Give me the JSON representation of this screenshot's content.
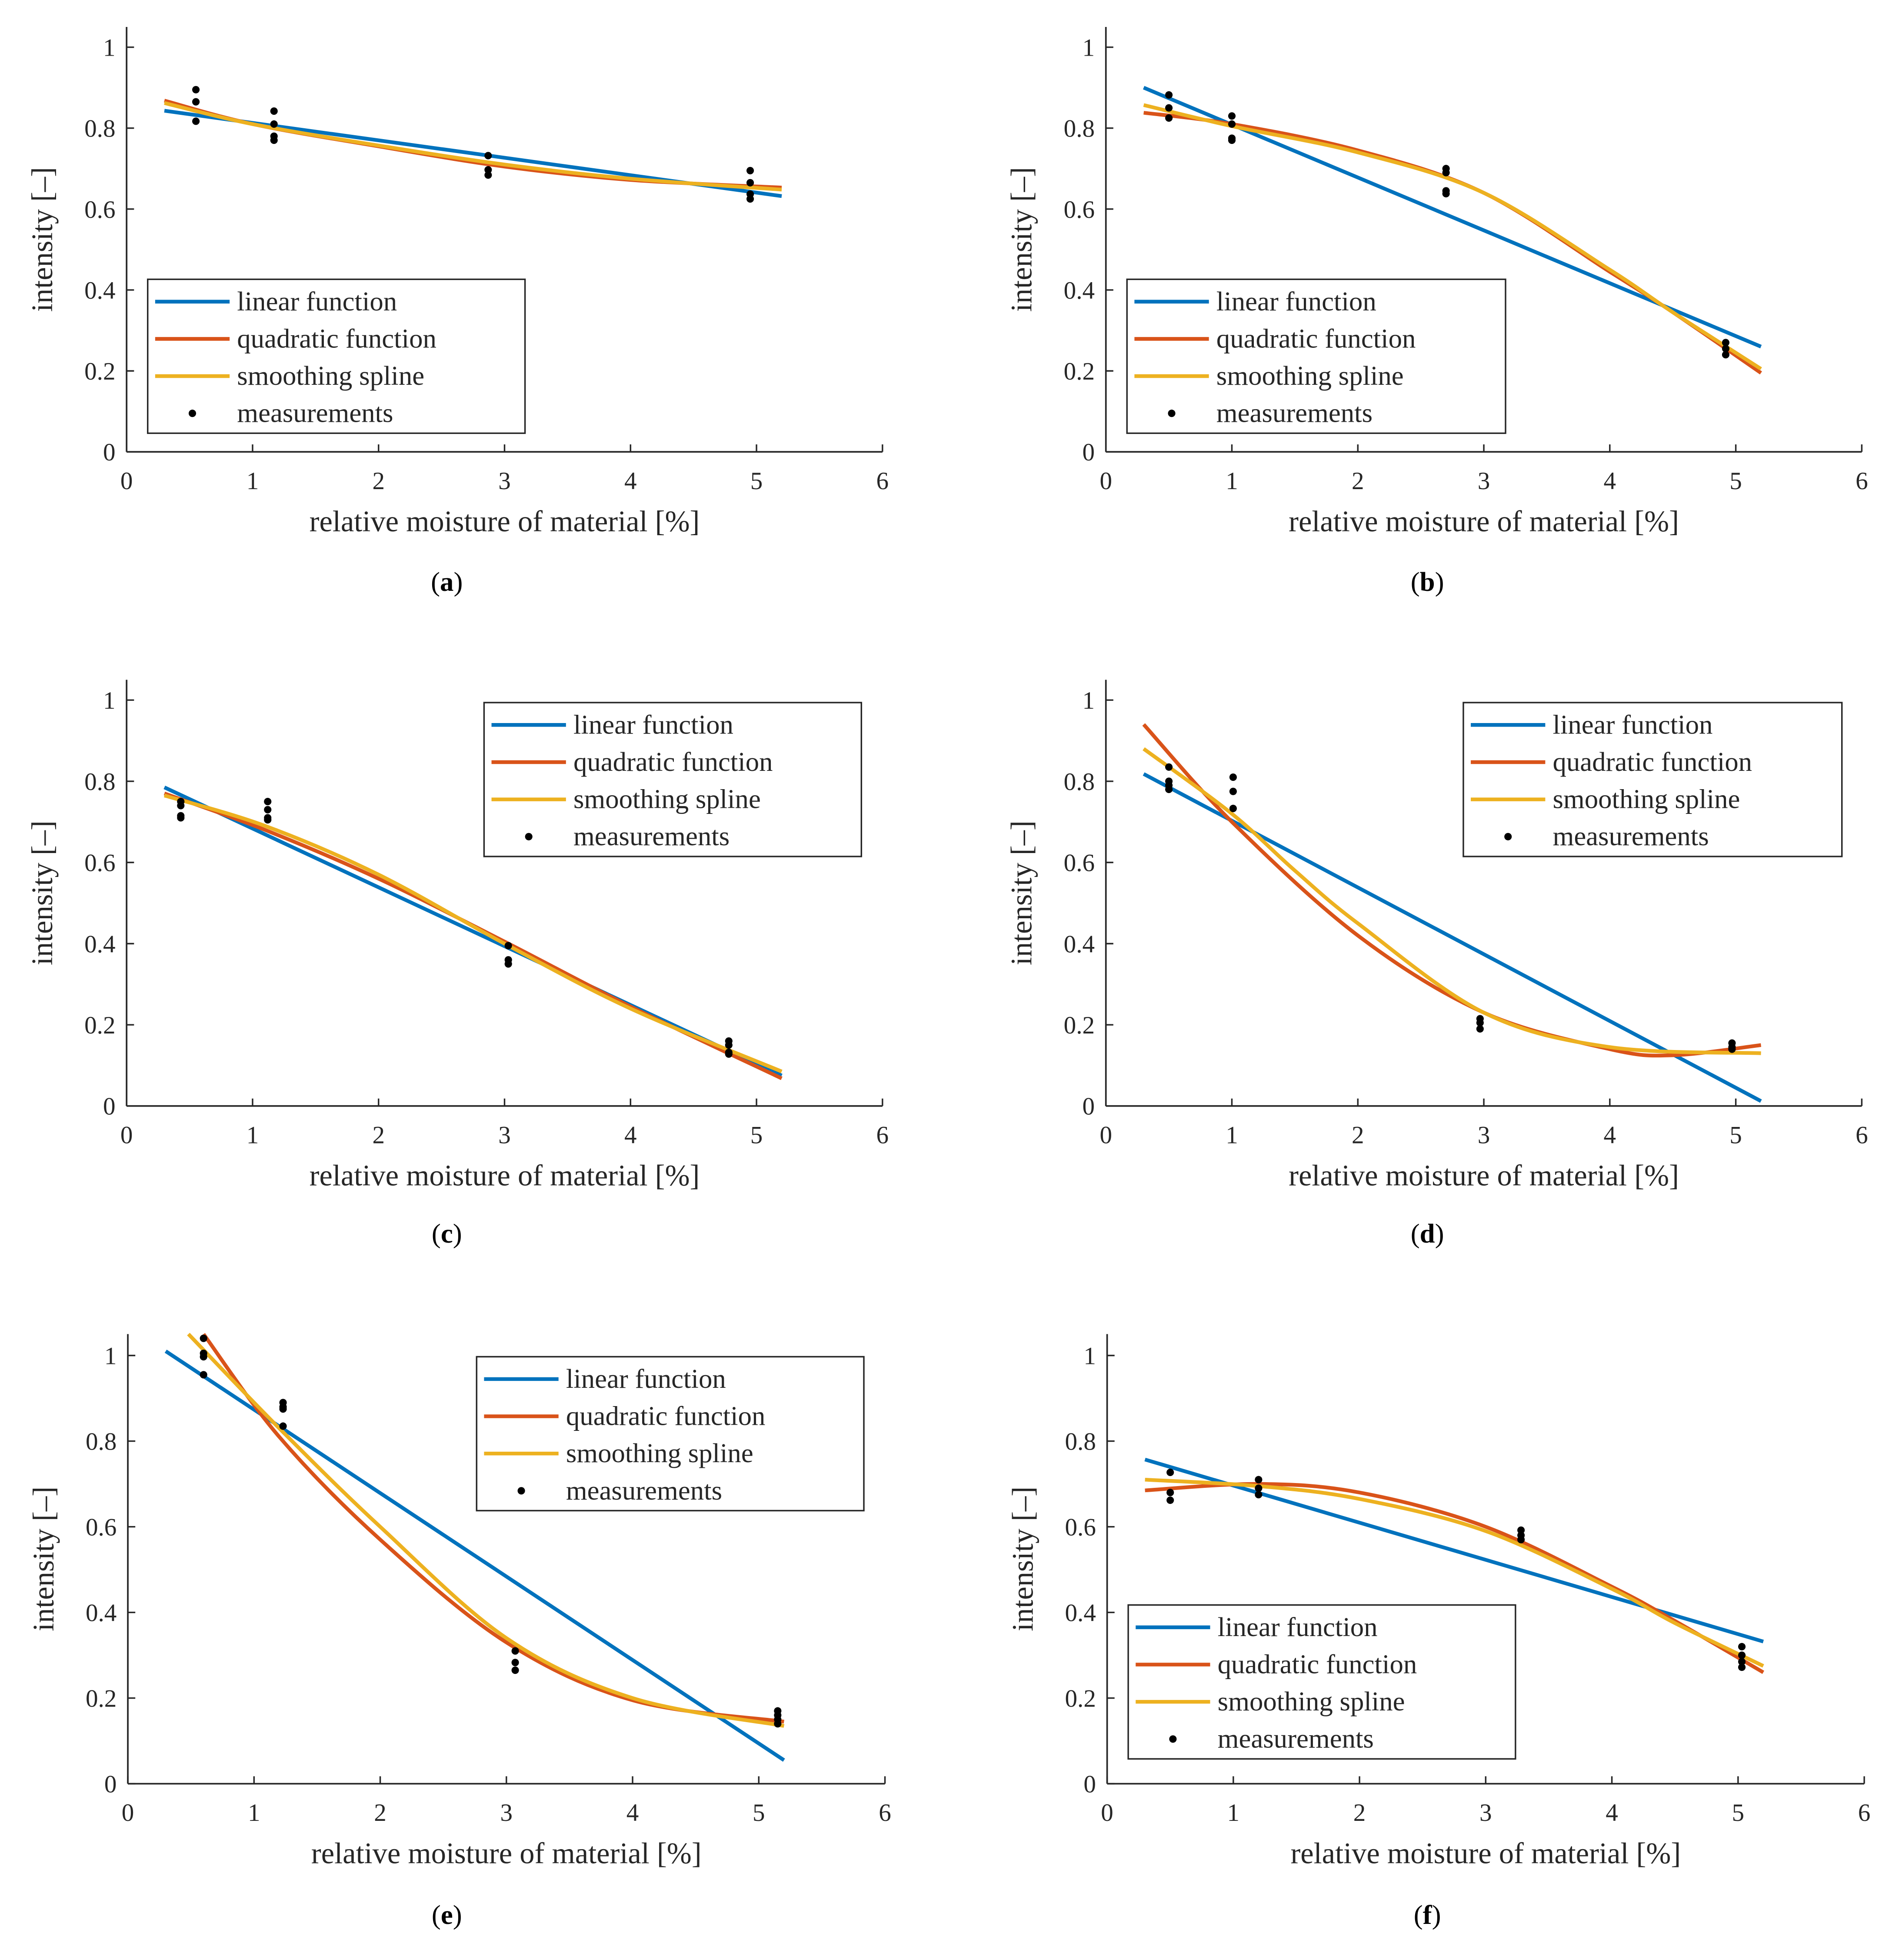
{
  "colors": {
    "linear": "#0072BD",
    "quadratic": "#D95319",
    "spline": "#EDB120",
    "measurements": "#000000"
  },
  "chart_data": [
    {
      "type": "line",
      "caption_letter": "a",
      "legend_position": "bottom-left",
      "xlabel": "relative moisture of material [%]",
      "ylabel": "intensity [–]",
      "xlim": [
        0,
        6
      ],
      "ylim": [
        0,
        1.05
      ],
      "xticks": [
        "0",
        "1",
        "2",
        "3",
        "4",
        "5",
        "6"
      ],
      "yticks": [
        "0",
        "0.2",
        "0.4",
        "0.6",
        "0.8",
        "1"
      ],
      "legend": [
        "linear function",
        "quadratic function",
        "smoothing spline",
        "measurements"
      ],
      "series": [
        {
          "name": "linear function",
          "x": [
            0.3,
            5.2
          ],
          "y": [
            0.843,
            0.632
          ]
        },
        {
          "name": "quadratic function",
          "x": [
            0.3,
            1,
            2,
            3,
            4,
            5.2
          ],
          "y": [
            0.868,
            0.81,
            0.755,
            0.705,
            0.672,
            0.653
          ]
        },
        {
          "name": "smoothing spline",
          "x": [
            0.3,
            1,
            2,
            3,
            4,
            5.2
          ],
          "y": [
            0.862,
            0.81,
            0.757,
            0.71,
            0.675,
            0.648
          ]
        }
      ],
      "measurements": {
        "x": [
          0.55,
          0.55,
          0.55,
          1.17,
          1.17,
          1.17,
          1.17,
          2.87,
          2.87,
          2.87,
          4.95,
          4.95,
          4.95,
          4.95
        ],
        "y": [
          0.895,
          0.865,
          0.817,
          0.842,
          0.81,
          0.78,
          0.77,
          0.732,
          0.697,
          0.684,
          0.695,
          0.665,
          0.637,
          0.625
        ]
      }
    },
    {
      "type": "line",
      "caption_letter": "b",
      "legend_position": "bottom-left",
      "xlabel": "relative moisture of material [%]",
      "ylabel": "intensity [–]",
      "xlim": [
        0,
        6
      ],
      "ylim": [
        0,
        1.05
      ],
      "xticks": [
        "0",
        "1",
        "2",
        "3",
        "4",
        "5",
        "6"
      ],
      "yticks": [
        "0",
        "0.2",
        "0.4",
        "0.6",
        "0.8",
        "1"
      ],
      "legend": [
        "linear function",
        "quadratic function",
        "smoothing spline",
        "measurements"
      ],
      "series": [
        {
          "name": "linear function",
          "x": [
            0.3,
            5.2
          ],
          "y": [
            0.9,
            0.26
          ]
        },
        {
          "name": "quadratic function",
          "x": [
            0.3,
            1,
            2,
            3,
            4,
            4.5,
            5.2
          ],
          "y": [
            0.838,
            0.81,
            0.745,
            0.64,
            0.445,
            0.345,
            0.195
          ]
        },
        {
          "name": "smoothing spline",
          "x": [
            0.3,
            1,
            2,
            3,
            4,
            4.5,
            5.2
          ],
          "y": [
            0.857,
            0.805,
            0.74,
            0.64,
            0.45,
            0.345,
            0.205
          ]
        }
      ],
      "measurements": {
        "x": [
          0.5,
          0.5,
          0.5,
          1,
          1,
          1,
          1,
          2.7,
          2.7,
          2.7,
          2.7,
          4.92,
          4.92,
          4.92
        ],
        "y": [
          0.882,
          0.85,
          0.825,
          0.83,
          0.81,
          0.775,
          0.77,
          0.7,
          0.69,
          0.645,
          0.638,
          0.27,
          0.255,
          0.24
        ]
      }
    },
    {
      "type": "line",
      "caption_letter": "c",
      "legend_position": "top-right",
      "xlabel": "relative moisture of material [%]",
      "ylabel": "intensity [–]",
      "xlim": [
        0,
        6
      ],
      "ylim": [
        0,
        1.05
      ],
      "xticks": [
        "0",
        "1",
        "2",
        "3",
        "4",
        "5",
        "6"
      ],
      "yticks": [
        "0",
        "0.2",
        "0.4",
        "0.6",
        "0.8",
        "1"
      ],
      "legend": [
        "linear function",
        "quadratic function",
        "smoothing spline",
        "measurements"
      ],
      "series": [
        {
          "name": "linear function",
          "x": [
            0.3,
            5.2
          ],
          "y": [
            0.785,
            0.075
          ]
        },
        {
          "name": "quadratic function",
          "x": [
            0.3,
            1.1,
            2,
            3,
            4,
            5.2
          ],
          "y": [
            0.77,
            0.68,
            0.56,
            0.405,
            0.245,
            0.068
          ]
        },
        {
          "name": "smoothing spline",
          "x": [
            0.3,
            1.1,
            2,
            3,
            4,
            5.2
          ],
          "y": [
            0.765,
            0.69,
            0.57,
            0.4,
            0.24,
            0.085
          ]
        }
      ],
      "measurements": {
        "x": [
          0.43,
          0.43,
          0.43,
          0.43,
          1.12,
          1.12,
          1.12,
          1.12,
          3.03,
          3.03,
          3.03,
          4.78,
          4.78,
          4.78,
          4.78
        ],
        "y": [
          0.75,
          0.74,
          0.715,
          0.71,
          0.75,
          0.73,
          0.71,
          0.705,
          0.395,
          0.36,
          0.35,
          0.16,
          0.15,
          0.132,
          0.128
        ]
      }
    },
    {
      "type": "line",
      "caption_letter": "d",
      "legend_position": "top-right",
      "xlabel": "relative moisture of material [%]",
      "ylabel": "intensity [–]",
      "xlim": [
        0,
        6
      ],
      "ylim": [
        0,
        1.05
      ],
      "xticks": [
        "0",
        "1",
        "2",
        "3",
        "4",
        "5",
        "6"
      ],
      "yticks": [
        "0",
        "0.2",
        "0.4",
        "0.6",
        "0.8",
        "1"
      ],
      "legend": [
        "linear function",
        "quadratic function",
        "smoothing spline",
        "measurements"
      ],
      "series": [
        {
          "name": "linear function",
          "x": [
            0.3,
            5.2
          ],
          "y": [
            0.818,
            0.012
          ]
        },
        {
          "name": "quadratic function",
          "x": [
            0.3,
            1,
            2,
            3,
            4,
            4.5,
            5.2
          ],
          "y": [
            0.94,
            0.7,
            0.42,
            0.23,
            0.14,
            0.125,
            0.15
          ]
        },
        {
          "name": "smoothing spline",
          "x": [
            0.3,
            1,
            1.5,
            2,
            3,
            4,
            5.2
          ],
          "y": [
            0.88,
            0.72,
            0.58,
            0.45,
            0.23,
            0.145,
            0.13
          ]
        }
      ],
      "measurements": {
        "x": [
          0.5,
          0.5,
          0.5,
          0.5,
          1.01,
          1.01,
          1.01,
          2.97,
          2.97,
          2.97,
          4.97,
          4.97,
          4.97
        ],
        "y": [
          0.835,
          0.8,
          0.79,
          0.78,
          0.81,
          0.775,
          0.733,
          0.215,
          0.205,
          0.19,
          0.155,
          0.145,
          0.14
        ]
      }
    },
    {
      "type": "line",
      "caption_letter": "e",
      "legend_position": "top-right",
      "xlabel": "relative moisture of material [%]",
      "ylabel": "intensity [–]",
      "xlim": [
        0,
        6
      ],
      "ylim": [
        0,
        1.05
      ],
      "xticks": [
        "0",
        "1",
        "2",
        "3",
        "4",
        "5",
        "6"
      ],
      "yticks": [
        "0",
        "0.2",
        "0.4",
        "0.6",
        "0.8",
        "1"
      ],
      "legend": [
        "linear function",
        "quadratic function",
        "smoothing spline",
        "measurements"
      ],
      "series": [
        {
          "name": "linear function",
          "x": [
            0.3,
            5.2
          ],
          "y": [
            1.01,
            0.055
          ]
        },
        {
          "name": "quadratic function",
          "x": [
            0.6,
            1.2,
            2,
            3,
            4,
            5.2
          ],
          "y": [
            1.05,
            0.81,
            0.57,
            0.33,
            0.195,
            0.145
          ]
        },
        {
          "name": "smoothing spline",
          "x": [
            0.48,
            1.2,
            2,
            3,
            4,
            5.2
          ],
          "y": [
            1.05,
            0.83,
            0.6,
            0.34,
            0.2,
            0.135
          ]
        }
      ],
      "measurements": {
        "x": [
          0.6,
          0.6,
          0.6,
          0.6,
          1.23,
          1.23,
          1.23,
          1.23,
          3.07,
          3.07,
          3.07,
          5.15,
          5.15,
          5.15,
          5.15
        ],
        "y": [
          1.04,
          1.005,
          0.997,
          0.955,
          0.89,
          0.88,
          0.875,
          0.835,
          0.31,
          0.283,
          0.265,
          0.17,
          0.16,
          0.15,
          0.14
        ]
      }
    },
    {
      "type": "line",
      "caption_letter": "f",
      "legend_position": "bottom-left",
      "xlabel": "relative moisture of material [%]",
      "ylabel": "intensity [–]",
      "xlim": [
        0,
        6
      ],
      "ylim": [
        0,
        1.05
      ],
      "xticks": [
        "0",
        "1",
        "2",
        "3",
        "4",
        "5",
        "6"
      ],
      "yticks": [
        "0",
        "0.2",
        "0.4",
        "0.6",
        "0.8",
        "1"
      ],
      "legend": [
        "linear function",
        "quadratic function",
        "smoothing spline",
        "measurements"
      ],
      "series": [
        {
          "name": "linear function",
          "x": [
            0.3,
            5.2
          ],
          "y": [
            0.757,
            0.332
          ]
        },
        {
          "name": "quadratic function",
          "x": [
            0.3,
            1.2,
            2,
            3,
            4,
            4.5,
            5.2
          ],
          "y": [
            0.685,
            0.7,
            0.68,
            0.6,
            0.46,
            0.38,
            0.26
          ]
        },
        {
          "name": "smoothing spline",
          "x": [
            0.3,
            1.2,
            2,
            3,
            4,
            4.5,
            5.2
          ],
          "y": [
            0.71,
            0.695,
            0.665,
            0.59,
            0.455,
            0.375,
            0.275
          ]
        }
      ],
      "measurements": {
        "x": [
          0.5,
          0.5,
          0.5,
          1.2,
          1.2,
          1.2,
          3.28,
          3.28,
          3.28,
          5.03,
          5.03,
          5.03,
          5.03
        ],
        "y": [
          0.727,
          0.68,
          0.662,
          0.71,
          0.69,
          0.675,
          0.592,
          0.58,
          0.57,
          0.32,
          0.3,
          0.285,
          0.272
        ]
      }
    }
  ]
}
